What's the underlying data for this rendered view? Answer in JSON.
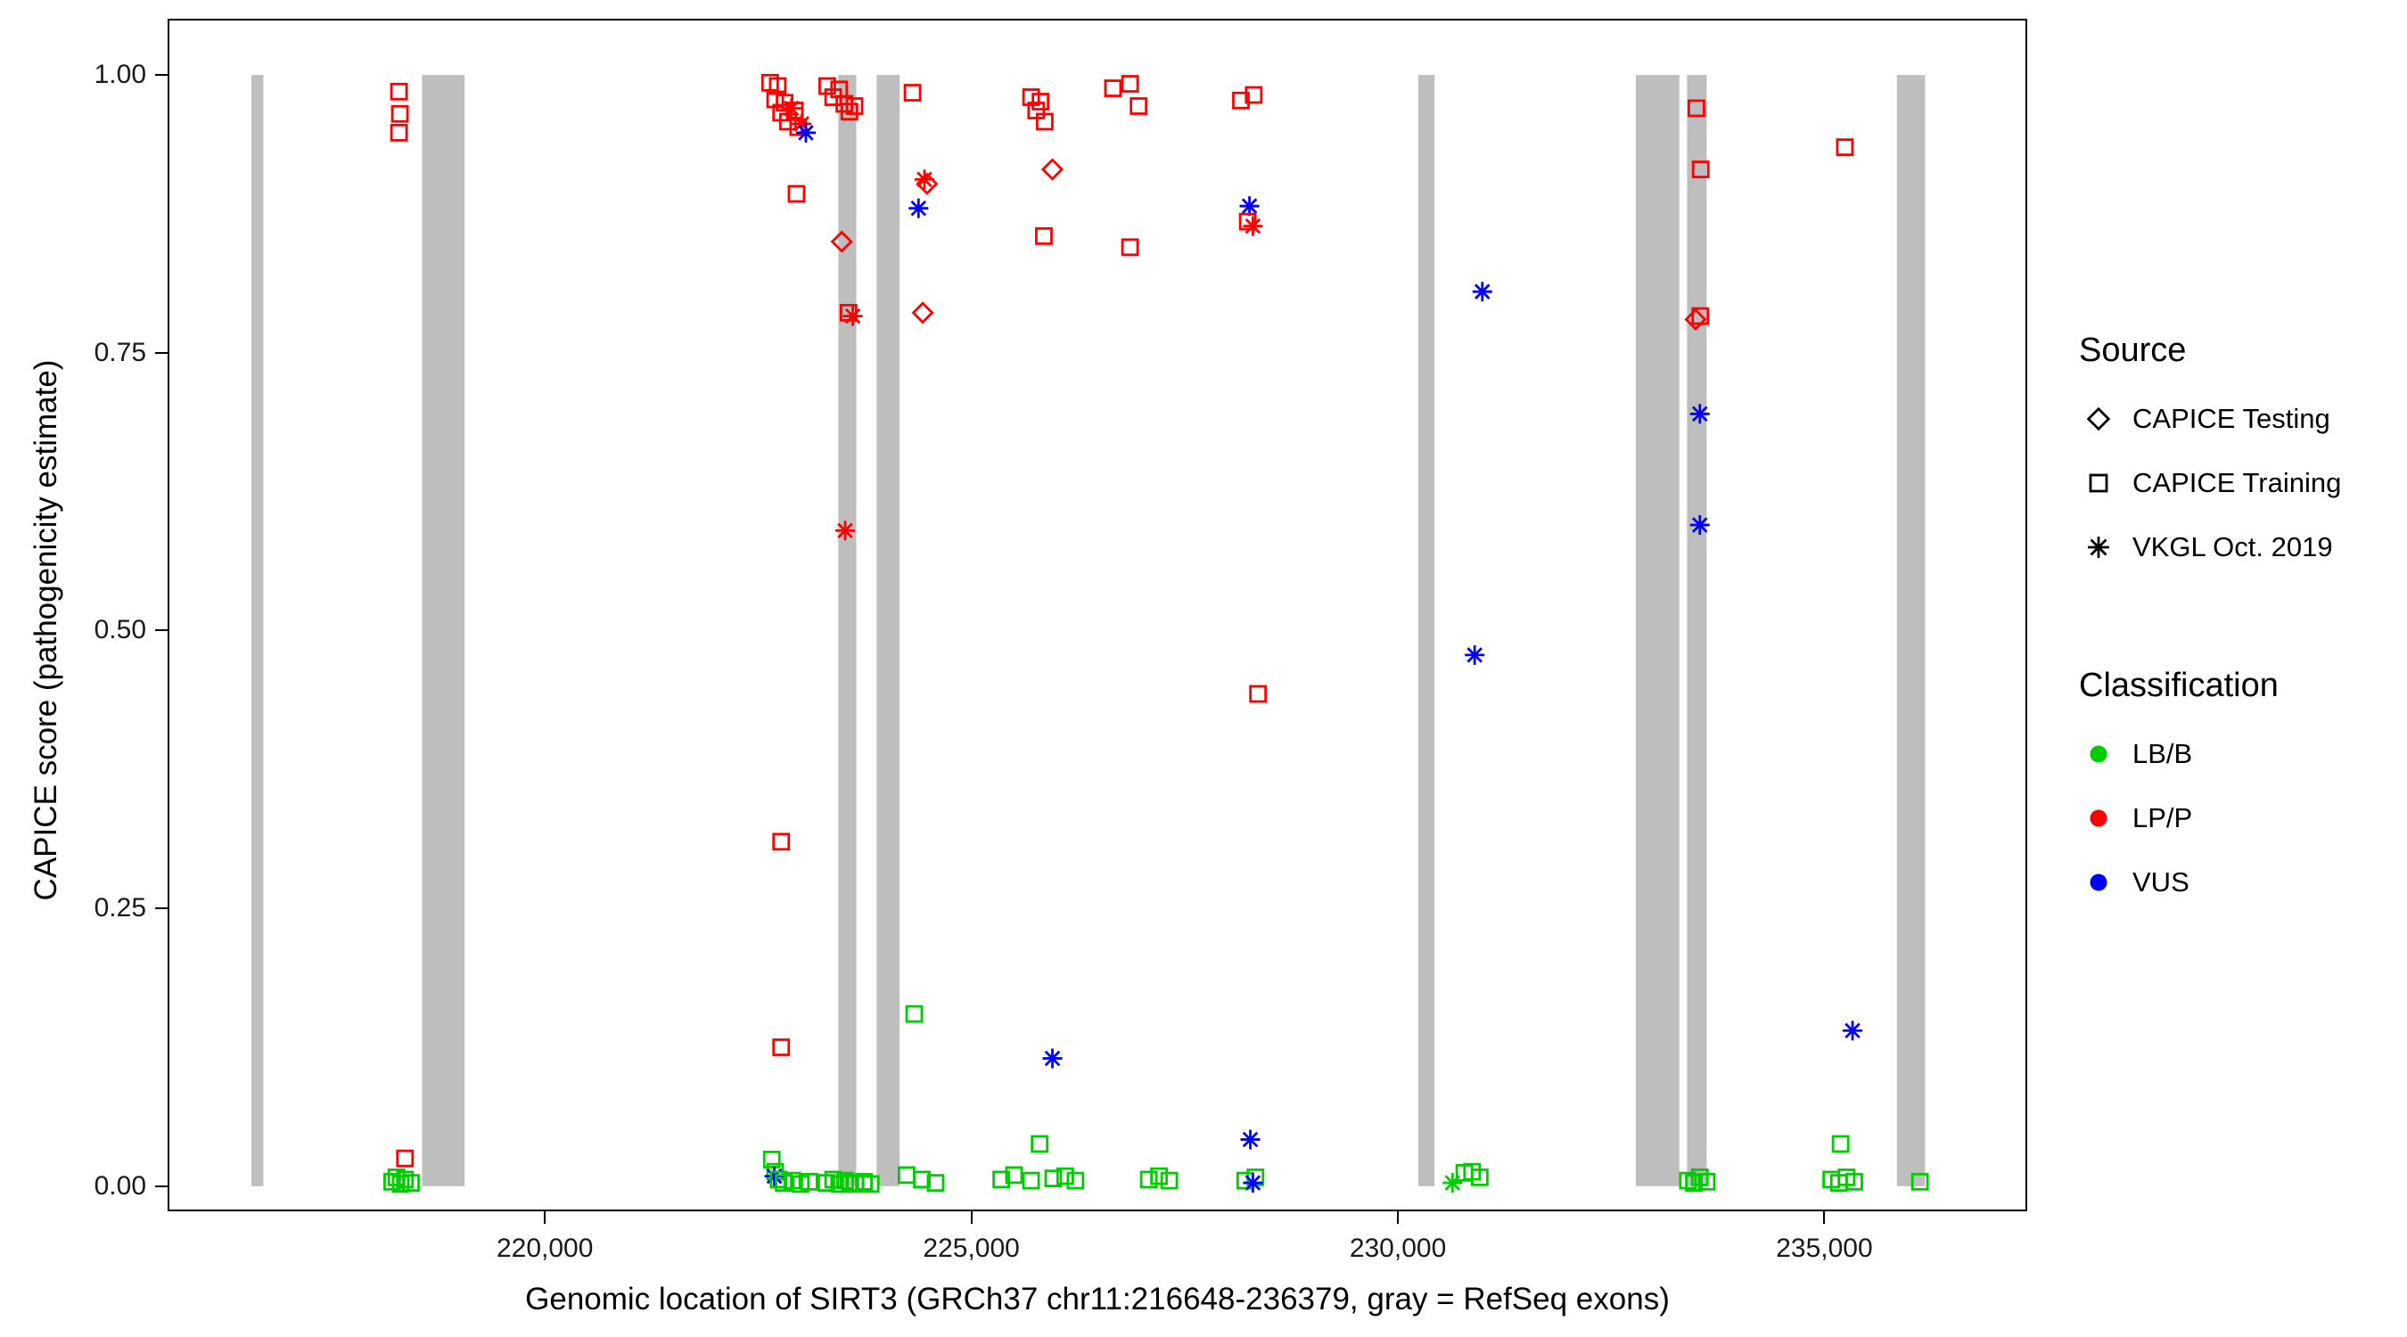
{
  "axes": {
    "x": {
      "title": "Genomic location of SIRT3 (GRCh37 chr11:216648-236379, gray = RefSeq exons)",
      "ticks": [
        {
          "value": 220000,
          "label": "220,000"
        },
        {
          "value": 225000,
          "label": "225,000"
        },
        {
          "value": 230000,
          "label": "230,000"
        },
        {
          "value": 235000,
          "label": "235,000"
        }
      ]
    },
    "y": {
      "title": "CAPICE score (pathogenicity estimate)",
      "ticks": [
        {
          "value": 0,
          "label": "0.00"
        },
        {
          "value": 0.25,
          "label": "0.25"
        },
        {
          "value": 0.5,
          "label": "0.50"
        },
        {
          "value": 0.75,
          "label": "0.75"
        },
        {
          "value": 1,
          "label": "1.00"
        }
      ]
    }
  },
  "legend": {
    "source": {
      "title": "Source",
      "items": [
        {
          "shape": "diamond",
          "label": "CAPICE Testing"
        },
        {
          "shape": "square",
          "label": "CAPICE Training"
        },
        {
          "shape": "asterisk",
          "label": "VKGL Oct. 2019"
        }
      ]
    },
    "classification": {
      "title": "Classification",
      "items": [
        {
          "color": "#00CD00",
          "label": "LB/B"
        },
        {
          "color": "#FF0000",
          "label": "LP/P"
        },
        {
          "color": "#0000FF",
          "label": "VUS"
        }
      ]
    }
  },
  "chart_data": {
    "type": "scatter",
    "title": "",
    "xlabel": "Genomic location of SIRT3 (GRCh37 chr11:216648-236379, gray = RefSeq exons)",
    "ylabel": "CAPICE score (pathogenicity estimate)",
    "xlim": [
      215598,
      237357
    ],
    "ylim": [
      -0.021,
      1.049
    ],
    "x_tick_values": [
      220000,
      225000,
      230000,
      235000
    ],
    "y_tick_values": [
      0,
      0.25,
      0.5,
      0.75,
      1
    ],
    "exon_color": "#BEBEBE",
    "exons": [
      [
        216560,
        216700
      ],
      [
        218560,
        219060
      ],
      [
        223440,
        223650
      ],
      [
        223890,
        224160
      ],
      [
        230240,
        230430
      ],
      [
        232790,
        233300
      ],
      [
        233390,
        233620
      ],
      [
        235850,
        236180
      ]
    ],
    "colors": {
      "LB/B": "#00CD00",
      "LP/P": "#FF0000",
      "VUS": "#0000FF"
    },
    "shape_legend": {
      "CAPICE Testing": "diamond",
      "CAPICE Training": "square",
      "VKGL Oct. 2019": "asterisk"
    },
    "points": [
      [
        218290,
        0.985,
        "LP/P",
        "square"
      ],
      [
        218300,
        0.965,
        "LP/P",
        "square"
      ],
      [
        218290,
        0.948,
        "LP/P",
        "square"
      ],
      [
        218360,
        0.025,
        "LP/P",
        "square"
      ],
      [
        218210,
        0.004,
        "LB/B",
        "square"
      ],
      [
        218260,
        0.008,
        "LB/B",
        "square"
      ],
      [
        218310,
        0.002,
        "LB/B",
        "square"
      ],
      [
        218360,
        0.006,
        "LB/B",
        "square"
      ],
      [
        218430,
        0.003,
        "LB/B",
        "square"
      ],
      [
        222640,
        0.993,
        "LP/P",
        "square"
      ],
      [
        222700,
        0.978,
        "LP/P",
        "square"
      ],
      [
        222730,
        0.99,
        "LP/P",
        "square"
      ],
      [
        222770,
        0.966,
        "LP/P",
        "square"
      ],
      [
        222810,
        0.975,
        "LP/P",
        "square"
      ],
      [
        222850,
        0.958,
        "LP/P",
        "square"
      ],
      [
        222890,
        0.97,
        "LP/P",
        "asterisk"
      ],
      [
        222930,
        0.968,
        "LP/P",
        "square"
      ],
      [
        222970,
        0.953,
        "LP/P",
        "square"
      ],
      [
        223010,
        0.956,
        "LP/P",
        "asterisk"
      ],
      [
        223060,
        0.948,
        "VUS",
        "asterisk"
      ],
      [
        222950,
        0.893,
        "LP/P",
        "square"
      ],
      [
        222770,
        0.31,
        "LP/P",
        "square"
      ],
      [
        222770,
        0.125,
        "LP/P",
        "square"
      ],
      [
        222660,
        0.024,
        "LB/B",
        "square"
      ],
      [
        222700,
        0.013,
        "LB/B",
        "square"
      ],
      [
        222690,
        0.009,
        "VUS",
        "asterisk"
      ],
      [
        222740,
        0.006,
        "LB/B",
        "square"
      ],
      [
        222800,
        0.003,
        "LB/B",
        "square"
      ],
      [
        222900,
        0.005,
        "LB/B",
        "square"
      ],
      [
        223000,
        0.002,
        "LB/B",
        "square"
      ],
      [
        223100,
        0.004,
        "LB/B",
        "square"
      ],
      [
        223310,
        0.99,
        "LP/P",
        "square"
      ],
      [
        223380,
        0.98,
        "LP/P",
        "square"
      ],
      [
        223450,
        0.987,
        "LP/P",
        "square"
      ],
      [
        223510,
        0.974,
        "LP/P",
        "square"
      ],
      [
        223570,
        0.967,
        "LP/P",
        "square"
      ],
      [
        223630,
        0.972,
        "LP/P",
        "square"
      ],
      [
        223480,
        0.85,
        "LP/P",
        "diamond"
      ],
      [
        223560,
        0.786,
        "LP/P",
        "square"
      ],
      [
        223610,
        0.783,
        "LP/P",
        "asterisk"
      ],
      [
        223520,
        0.59,
        "LP/P",
        "asterisk"
      ],
      [
        223300,
        0.003,
        "LB/B",
        "square"
      ],
      [
        223380,
        0.006,
        "LB/B",
        "square"
      ],
      [
        223450,
        0.002,
        "LB/B",
        "square"
      ],
      [
        223520,
        0.005,
        "LB/B",
        "square"
      ],
      [
        223580,
        0.003,
        "LB/B",
        "square"
      ],
      [
        223640,
        0.002,
        "LB/B",
        "square"
      ],
      [
        223740,
        0.004,
        "LB/B",
        "square"
      ],
      [
        223820,
        0.002,
        "LB/B",
        "square"
      ],
      [
        224310,
        0.984,
        "LP/P",
        "square"
      ],
      [
        224450,
        0.906,
        "LP/P",
        "asterisk"
      ],
      [
        224480,
        0.902,
        "LP/P",
        "diamond"
      ],
      [
        224380,
        0.88,
        "VUS",
        "asterisk"
      ],
      [
        224430,
        0.786,
        "LP/P",
        "diamond"
      ],
      [
        224330,
        0.155,
        "LB/B",
        "square"
      ],
      [
        224240,
        0.01,
        "LB/B",
        "square"
      ],
      [
        224420,
        0.006,
        "LB/B",
        "square"
      ],
      [
        224580,
        0.003,
        "LB/B",
        "square"
      ],
      [
        225700,
        0.98,
        "LP/P",
        "square"
      ],
      [
        225760,
        0.968,
        "LP/P",
        "square"
      ],
      [
        225810,
        0.976,
        "LP/P",
        "square"
      ],
      [
        225860,
        0.958,
        "LP/P",
        "square"
      ],
      [
        225950,
        0.915,
        "LP/P",
        "diamond"
      ],
      [
        225850,
        0.855,
        "LP/P",
        "square"
      ],
      [
        225950,
        0.115,
        "VUS",
        "asterisk"
      ],
      [
        225350,
        0.006,
        "LB/B",
        "square"
      ],
      [
        225500,
        0.01,
        "LB/B",
        "square"
      ],
      [
        225700,
        0.005,
        "LB/B",
        "square"
      ],
      [
        225800,
        0.038,
        "LB/B",
        "square"
      ],
      [
        225960,
        0.007,
        "LB/B",
        "square"
      ],
      [
        226100,
        0.009,
        "LB/B",
        "square"
      ],
      [
        226220,
        0.005,
        "LB/B",
        "square"
      ],
      [
        226660,
        0.988,
        "LP/P",
        "square"
      ],
      [
        226860,
        0.992,
        "LP/P",
        "square"
      ],
      [
        226960,
        0.972,
        "LP/P",
        "square"
      ],
      [
        226860,
        0.845,
        "LP/P",
        "square"
      ],
      [
        227080,
        0.006,
        "LB/B",
        "square"
      ],
      [
        227200,
        0.009,
        "LB/B",
        "square"
      ],
      [
        227320,
        0.005,
        "LB/B",
        "square"
      ],
      [
        228160,
        0.977,
        "LP/P",
        "square"
      ],
      [
        228310,
        0.982,
        "LP/P",
        "square"
      ],
      [
        228260,
        0.882,
        "VUS",
        "asterisk"
      ],
      [
        228240,
        0.868,
        "LP/P",
        "square"
      ],
      [
        228300,
        0.864,
        "LP/P",
        "asterisk"
      ],
      [
        228360,
        0.443,
        "LP/P",
        "square"
      ],
      [
        228270,
        0.042,
        "VUS",
        "asterisk"
      ],
      [
        228210,
        0.005,
        "LB/B",
        "square"
      ],
      [
        228330,
        0.008,
        "LB/B",
        "square"
      ],
      [
        228300,
        0.003,
        "VUS",
        "asterisk"
      ],
      [
        230990,
        0.805,
        "VUS",
        "asterisk"
      ],
      [
        230900,
        0.478,
        "VUS",
        "asterisk"
      ],
      [
        230640,
        0.003,
        "LB/B",
        "asterisk"
      ],
      [
        230780,
        0.012,
        "LB/B",
        "square"
      ],
      [
        230870,
        0.013,
        "LB/B",
        "square"
      ],
      [
        230960,
        0.008,
        "LB/B",
        "square"
      ],
      [
        233500,
        0.97,
        "LP/P",
        "square"
      ],
      [
        233550,
        0.915,
        "LP/P",
        "square"
      ],
      [
        233490,
        0.78,
        "LP/P",
        "diamond"
      ],
      [
        233545,
        0.783,
        "LP/P",
        "square"
      ],
      [
        233540,
        0.695,
        "VUS",
        "asterisk"
      ],
      [
        233540,
        0.595,
        "VUS",
        "asterisk"
      ],
      [
        233400,
        0.005,
        "LB/B",
        "square"
      ],
      [
        233470,
        0.003,
        "LB/B",
        "square"
      ],
      [
        233540,
        0.008,
        "LB/B",
        "square"
      ],
      [
        233620,
        0.004,
        "LB/B",
        "square"
      ],
      [
        235240,
        0.935,
        "LP/P",
        "square"
      ],
      [
        235330,
        0.14,
        "VUS",
        "asterisk"
      ],
      [
        235190,
        0.038,
        "LB/B",
        "square"
      ],
      [
        235080,
        0.006,
        "LB/B",
        "square"
      ],
      [
        235170,
        0.003,
        "LB/B",
        "square"
      ],
      [
        235260,
        0.008,
        "LB/B",
        "square"
      ],
      [
        235350,
        0.004,
        "LB/B",
        "square"
      ],
      [
        236120,
        0.004,
        "LB/B",
        "square"
      ]
    ]
  }
}
